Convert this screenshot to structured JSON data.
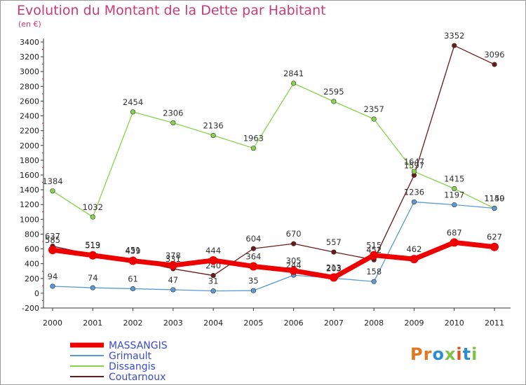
{
  "title": "Evolution du Montant de la Dette par Habitant",
  "unit": "(en €)",
  "logo": {
    "text": "Proxiti",
    "colors": [
      "#e07820",
      "#e07820",
      "#2a8fd0",
      "#7cc243",
      "#e05020",
      "#2a8fd0",
      "#7cc243"
    ]
  },
  "chart_data": {
    "type": "line",
    "title": "Evolution du Montant de la Dette par Habitant",
    "ylabel": "(en €)",
    "xlabel": "",
    "x": [
      "2000",
      "2001",
      "2002",
      "2003",
      "2004",
      "2005",
      "2006",
      "2007",
      "2008",
      "2009",
      "2010",
      "2011"
    ],
    "ylim": [
      -200,
      3400
    ],
    "yticks": [
      -200,
      0,
      200,
      400,
      600,
      800,
      1000,
      1200,
      1400,
      1600,
      1800,
      2000,
      2200,
      2400,
      2600,
      2800,
      3000,
      3200,
      3400
    ],
    "grid": false,
    "legend_position": "bottom-left",
    "series": [
      {
        "name": "Coutarnoux",
        "color": "#6b1a1a",
        "values": [
          637,
          519,
          451,
          331,
          240,
          604,
          670,
          557,
          452,
          1597,
          3352,
          3096
        ]
      },
      {
        "name": "Dissangis",
        "color": "#88d34b",
        "values": [
          1384,
          1032,
          2454,
          2306,
          2136,
          1963,
          2841,
          2595,
          2357,
          1647,
          1415,
          1149
        ]
      },
      {
        "name": "Grimault",
        "color": "#5b9bd5",
        "values": [
          94,
          74,
          61,
          47,
          31,
          35,
          244,
          203,
          158,
          1236,
          1197,
          1150
        ]
      },
      {
        "name": "MASSANGIS",
        "color": "#ee0000",
        "values": [
          585,
          513,
          439,
          378,
          444,
          364,
          305,
          213,
          515,
          462,
          687,
          627
        ]
      }
    ]
  }
}
